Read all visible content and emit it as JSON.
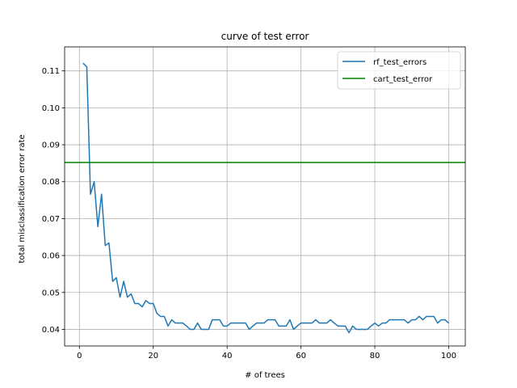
{
  "chart_data": {
    "type": "line",
    "title": "curve of test error",
    "xlabel": "# of trees",
    "ylabel": "total misclassification error rate",
    "xlim": [
      -4,
      104.5
    ],
    "ylim": [
      0.0355,
      0.1165
    ],
    "xticks": [
      0,
      20,
      40,
      60,
      80,
      100
    ],
    "yticks": [
      0.04,
      0.05,
      0.06,
      0.07,
      0.08,
      0.09,
      0.1,
      0.11
    ],
    "ytick_labels": [
      "0.04",
      "0.05",
      "0.06",
      "0.07",
      "0.08",
      "0.09",
      "0.10",
      "0.11"
    ],
    "grid": true,
    "legend_position": "upper right",
    "series": [
      {
        "name": "rf_test_errors",
        "type": "line",
        "color": "#1f77b4",
        "x": [
          1,
          2,
          3,
          4,
          5,
          6,
          7,
          8,
          9,
          10,
          11,
          12,
          13,
          14,
          15,
          16,
          17,
          18,
          19,
          20,
          21,
          22,
          23,
          24,
          25,
          26,
          27,
          28,
          29,
          30,
          31,
          32,
          33,
          34,
          35,
          36,
          37,
          38,
          39,
          40,
          41,
          42,
          43,
          44,
          45,
          46,
          47,
          48,
          49,
          50,
          51,
          52,
          53,
          54,
          55,
          56,
          57,
          58,
          59,
          60,
          61,
          62,
          63,
          64,
          65,
          66,
          67,
          68,
          69,
          70,
          71,
          72,
          73,
          74,
          75,
          76,
          77,
          78,
          79,
          80,
          81,
          82,
          83,
          84,
          85,
          86,
          87,
          88,
          89,
          90,
          91,
          92,
          93,
          94,
          95,
          96,
          97,
          98,
          99,
          100
        ],
        "values": [
          0.1121,
          0.1111,
          0.0766,
          0.08,
          0.0678,
          0.0766,
          0.0627,
          0.0634,
          0.053,
          0.054,
          0.0487,
          0.053,
          0.0487,
          0.0496,
          0.047,
          0.047,
          0.0461,
          0.0478,
          0.047,
          0.047,
          0.0443,
          0.0435,
          0.0435,
          0.0409,
          0.0426,
          0.0417,
          0.0417,
          0.0417,
          0.0409,
          0.04,
          0.04,
          0.0417,
          0.04,
          0.04,
          0.04,
          0.0426,
          0.0426,
          0.0426,
          0.0409,
          0.0409,
          0.0417,
          0.0417,
          0.0417,
          0.0417,
          0.0417,
          0.04,
          0.0409,
          0.0417,
          0.0417,
          0.0417,
          0.0426,
          0.0426,
          0.0426,
          0.0409,
          0.0409,
          0.0409,
          0.0426,
          0.04,
          0.0409,
          0.0417,
          0.0417,
          0.0417,
          0.0417,
          0.0426,
          0.0417,
          0.0417,
          0.0417,
          0.0426,
          0.0417,
          0.0409,
          0.0409,
          0.0409,
          0.0391,
          0.0409,
          0.04,
          0.04,
          0.04,
          0.04,
          0.0409,
          0.0417,
          0.0409,
          0.0417,
          0.0417,
          0.0426,
          0.0426,
          0.0426,
          0.0426,
          0.0426,
          0.0417,
          0.0426,
          0.0426,
          0.0435,
          0.0426,
          0.0435,
          0.0435,
          0.0435,
          0.0417,
          0.0426,
          0.0426,
          0.0417
        ]
      },
      {
        "name": "cart_test_error",
        "type": "hline",
        "color": "#008000",
        "y": 0.0852
      }
    ]
  }
}
